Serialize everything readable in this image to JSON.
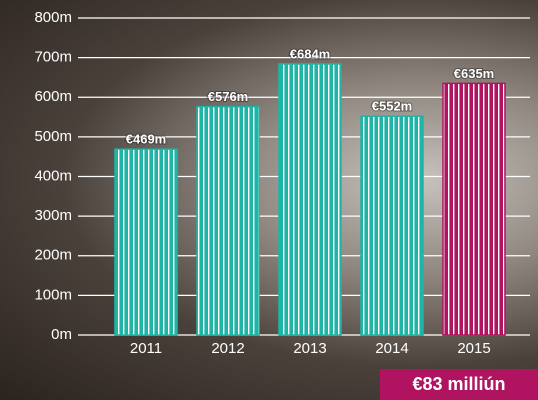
{
  "chart_data": {
    "type": "bar",
    "categories": [
      "2011",
      "2012",
      "2013",
      "2014",
      "2015"
    ],
    "values": [
      469,
      576,
      684,
      552,
      635
    ],
    "value_labels": [
      "€469m",
      "€576m",
      "€684m",
      "€552m",
      "€635m"
    ],
    "colors": [
      "#1fb5a6",
      "#1fb5a6",
      "#1fb5a6",
      "#1fb5a6",
      "#b0135f"
    ],
    "ylim": [
      0,
      800
    ],
    "yticks": [
      {
        "value": 0,
        "label": "0m"
      },
      {
        "value": 100,
        "label": "100m"
      },
      {
        "value": 200,
        "label": "200m"
      },
      {
        "value": 300,
        "label": "300m"
      },
      {
        "value": 400,
        "label": "400m"
      },
      {
        "value": 500,
        "label": "500m"
      },
      {
        "value": 600,
        "label": "600m"
      },
      {
        "value": 700,
        "label": "700m"
      },
      {
        "value": 800,
        "label": "800m"
      }
    ],
    "grid": true,
    "annotation": "€83 milliún",
    "annotation_color": "#b0135f"
  }
}
